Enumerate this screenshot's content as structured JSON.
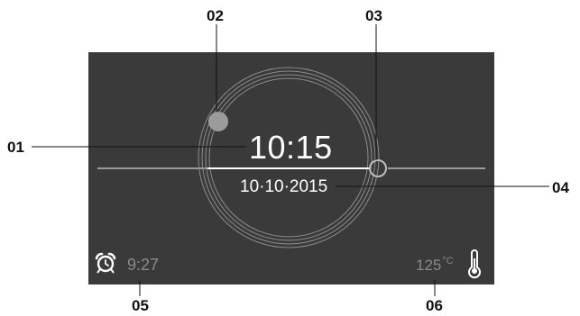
{
  "callouts": {
    "c01": "01",
    "c02": "02",
    "c03": "03",
    "c04": "04",
    "c05": "05",
    "c06": "06"
  },
  "display": {
    "time": "10:15",
    "date": "10·10·2015",
    "alarm": {
      "icon": "alarm-clock-icon",
      "time": "9:27"
    },
    "temperature": {
      "value": "125",
      "unit": "°C",
      "icon": "thermometer-icon"
    }
  },
  "colors": {
    "screen_bg": "#3a3a3a",
    "primary_text": "#ffffff",
    "secondary_text": "#8a8a8a",
    "ring": "#8c8c8c",
    "indicator_dot": "#9b9b9b"
  }
}
